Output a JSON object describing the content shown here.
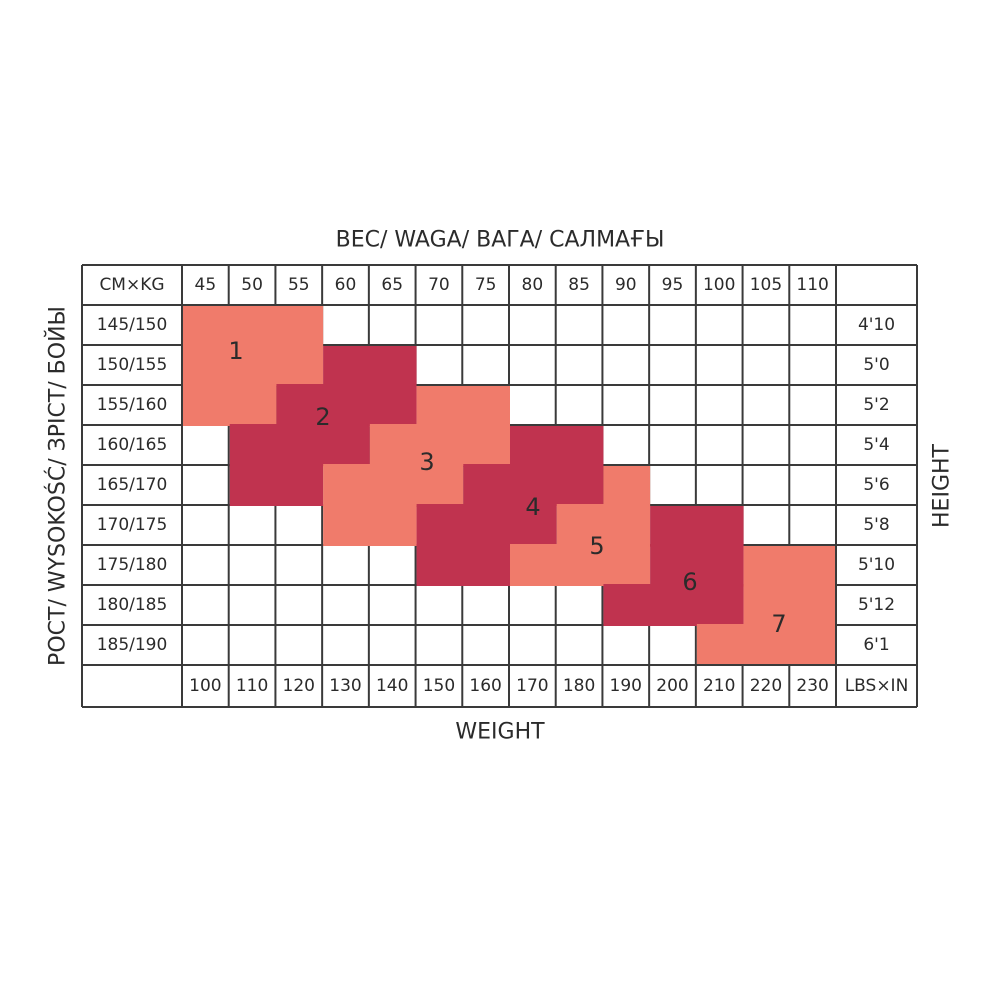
{
  "title_top": "ВЕС/ WAGA/ ВАГА/ САЛМАҒЫ",
  "title_left": "РОСТ/ WYSOKOŚĆ/ ЗРІСТ/ БОЙЫ",
  "title_right": "HEIGHT",
  "title_bottom": "WEIGHT",
  "table": {
    "corner_top": "CM×KG",
    "corner_bottom": "LBS×IN",
    "kg": [
      "45",
      "50",
      "55",
      "60",
      "65",
      "70",
      "75",
      "80",
      "85",
      "90",
      "95",
      "100",
      "105",
      "110"
    ],
    "lbs": [
      "100",
      "110",
      "120",
      "130",
      "140",
      "150",
      "160",
      "170",
      "180",
      "190",
      "200",
      "210",
      "220",
      "230"
    ],
    "cm": [
      "145/150",
      "150/155",
      "155/160",
      "160/165",
      "165/170",
      "170/175",
      "175/180",
      "180/185",
      "185/190"
    ],
    "inches": [
      "4'10",
      "5'0",
      "5'2",
      "5'4",
      "5'6",
      "5'8",
      "5'10",
      "5'12",
      "6'1"
    ]
  },
  "sizes": [
    "1",
    "2",
    "3",
    "4",
    "5",
    "6",
    "7"
  ]
}
